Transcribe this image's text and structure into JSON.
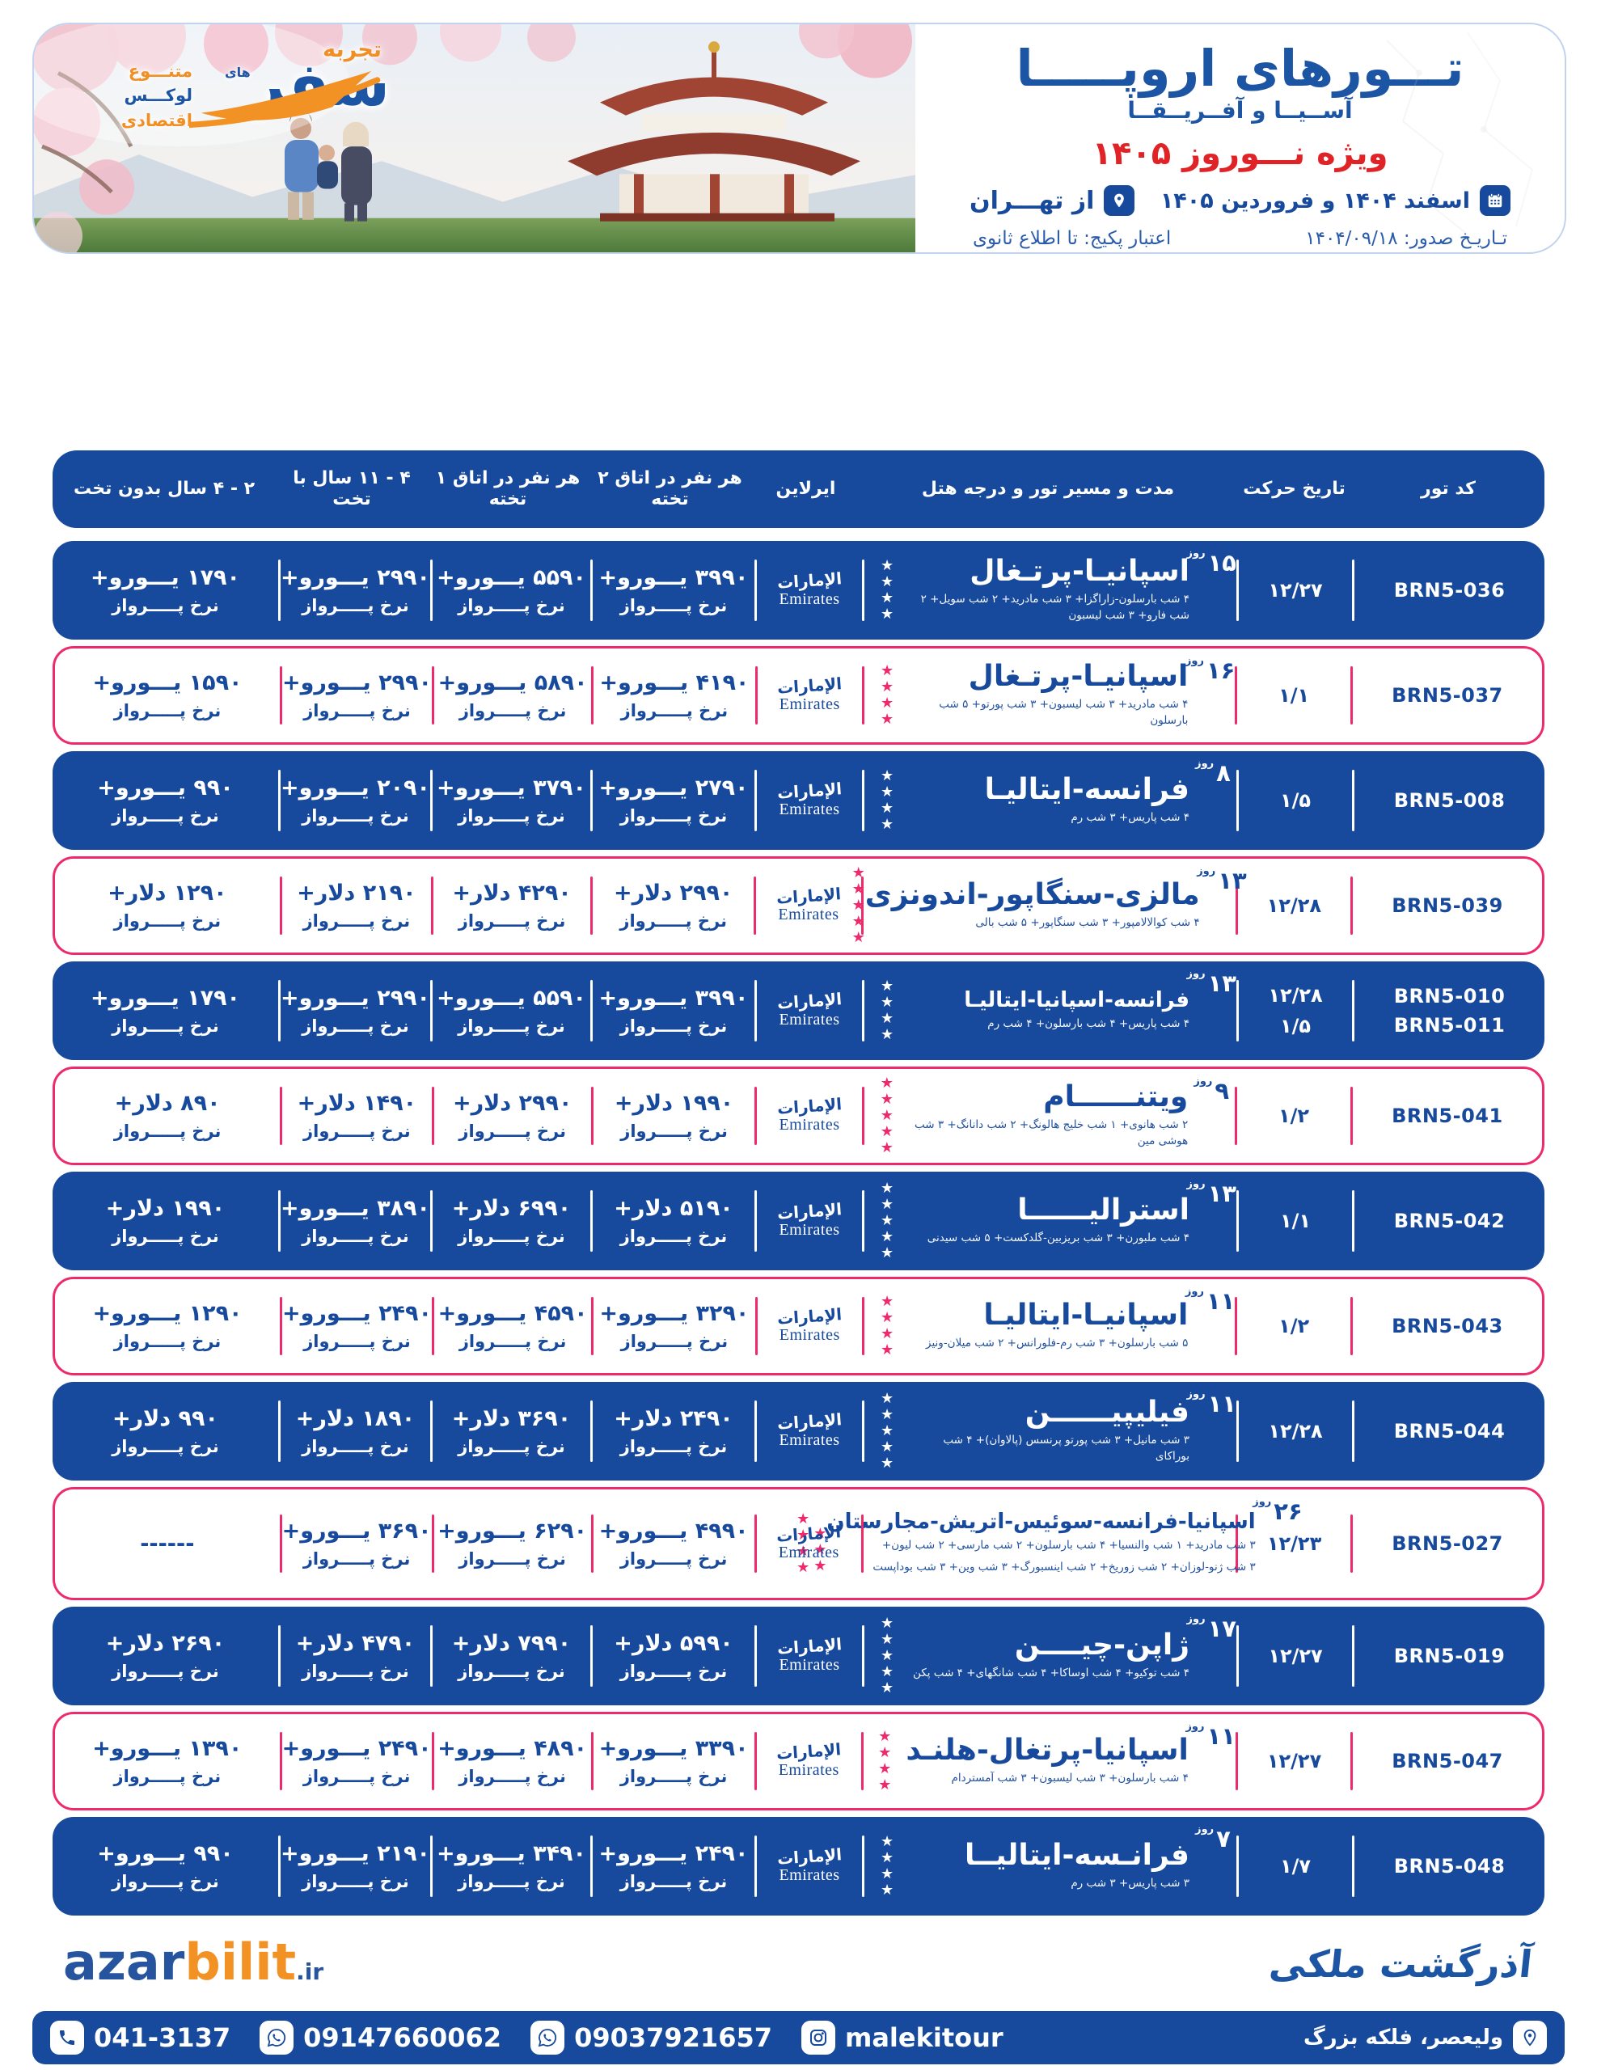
{
  "brand": {
    "tag_top": "تجربه",
    "word": "سفر",
    "word_suffix": "های",
    "tags": [
      "متنـــوع",
      "لوکـــس",
      "اقتصادی"
    ]
  },
  "header": {
    "title": "تـــورهای اروپـــــا",
    "subtitle": "آســیــا و آفــریــقــا",
    "highlight": "ویژه نـــوروز ۱۴۰۵",
    "date_range": "اسفند ۱۴۰۴ و فروردین ۱۴۰۵",
    "origin": "از تهـــران",
    "issue_date": "تـاریـخ صدور: ۱۴۰۴/۰۹/۱۸",
    "validity": "اعتبار پکیج: تا اطلاع ثانوی"
  },
  "table": {
    "columns": [
      "کد تور",
      "تاریخ حرکت",
      "مدت و مسیر تور و درجه هتل",
      "ایرلاین",
      "هر نفر در اتاق ۲ تخته",
      "هر نفر در اتاق ۱ تخته",
      "۴ - ۱۱ سال با تخت",
      "۲ - ۴ سال بدون تخت"
    ],
    "day_word": "روز",
    "fare_note": "نرخ پـــــرواز",
    "airline": {
      "latin": "Emirates",
      "arabic": "الإمارات"
    },
    "rows": [
      {
        "theme": "blue",
        "codes": [
          "BRN5-036"
        ],
        "dates": [
          "۱۲/۲۷"
        ],
        "days": "۱۵",
        "title": "اسپانیـا-پرتـغال",
        "details": [
          "۴ شب بارسلون-زاراگزا+ ۳ شب مادرید+ ۲ شب سویل+ ۲ شب فارو+ ۳ شب لیسبون"
        ],
        "stars": [
          4
        ],
        "prices": [
          "۳۹۹۰ یـــورو+",
          "۵۵۹۰ یـــورو+",
          "۲۹۹۰ یـــورو+",
          "۱۷۹۰ یـــورو+"
        ]
      },
      {
        "theme": "white",
        "codes": [
          "BRN5-037"
        ],
        "dates": [
          "۱/۱"
        ],
        "days": "۱۶",
        "title": "اسپانیـا-پرتـغال",
        "details": [
          "۴ شب مادرید+ ۳ شب لیسبون+ ۳ شب پورتو+ ۵ شب بارسلون"
        ],
        "stars": [
          4
        ],
        "prices": [
          "۴۱۹۰ یـــورو+",
          "۵۸۹۰ یـــورو+",
          "۲۹۹۰ یـــورو+",
          "۱۵۹۰ یـــورو+"
        ]
      },
      {
        "theme": "blue",
        "codes": [
          "BRN5-008"
        ],
        "dates": [
          "۱/۵"
        ],
        "days": "۸",
        "title": "فرانسه-ایتالیـا",
        "details": [
          "۴ شب پاریس+ ۳ شب رم"
        ],
        "stars": [
          4
        ],
        "prices": [
          "۲۷۹۰ یـــورو+",
          "۳۷۹۰ یـــورو+",
          "۲۰۹۰ یـــورو+",
          "۹۹۰ یـــورو+"
        ]
      },
      {
        "theme": "white",
        "codes": [
          "BRN5-039"
        ],
        "dates": [
          "۱۲/۲۸"
        ],
        "days": "۱۳",
        "title": "مالزی-سنگاپور-اندونزی",
        "details": [
          "۴ شب کوالالامپور+ ۳ شب سنگاپور+ ۵ شب بالی"
        ],
        "stars": [
          5
        ],
        "prices": [
          "۲۹۹۰ دلار+",
          "۴۲۹۰ دلار+",
          "۲۱۹۰ دلار+",
          "۱۲۹۰ دلار+"
        ]
      },
      {
        "theme": "blue",
        "codes": [
          "BRN5-010",
          "BRN5-011"
        ],
        "dates": [
          "۱۲/۲۸",
          "۱/۵"
        ],
        "days": "۱۳",
        "title": "فرانسه-اسپانیا-ایتالیـا",
        "details": [
          "۴ شب پاریس+ ۴ شب بارسلون+ ۴ شب رم"
        ],
        "stars": [
          4
        ],
        "prices": [
          "۳۹۹۰ یـــورو+",
          "۵۵۹۰ یـــورو+",
          "۲۹۹۰ یـــورو+",
          "۱۷۹۰ یـــورو+"
        ]
      },
      {
        "theme": "white",
        "codes": [
          "BRN5-041"
        ],
        "dates": [
          "۱/۲"
        ],
        "days": "۹",
        "title": "ویتنــــــام",
        "details": [
          "۲ شب هانوی+ ۱ شب خلیج هالونگ+ ۲ شب دانانگ+ ۳ شب هوشی مین"
        ],
        "stars": [
          5
        ],
        "prices": [
          "۱۹۹۰ دلار+",
          "۲۹۹۰ دلار+",
          "۱۴۹۰ دلار+",
          "۸۹۰ دلار+"
        ]
      },
      {
        "theme": "blue",
        "codes": [
          "BRN5-042"
        ],
        "dates": [
          "۱/۱"
        ],
        "days": "۱۳",
        "title": "استرالیــــــا",
        "details": [
          "۴ شب ملبورن+ ۳ شب بریزبین-گلدکست+ ۵ شب سیدنی"
        ],
        "stars": [
          5
        ],
        "prices": [
          "۵۱۹۰ دلار+",
          "۶۹۹۰ دلار+",
          "۳۸۹۰ یـــورو+",
          "۱۹۹۰ دلار+"
        ]
      },
      {
        "theme": "white",
        "codes": [
          "BRN5-043"
        ],
        "dates": [
          "۱/۲"
        ],
        "days": "۱۱",
        "title": "اسپانیـا-ایتالیـا",
        "details": [
          "۵ شب بارسلون+ ۳ شب رم-فلورانس+ ۲ شب میلان-ونیز"
        ],
        "stars": [
          4
        ],
        "prices": [
          "۳۲۹۰ یـــورو+",
          "۴۵۹۰ یـــورو+",
          "۲۴۹۰ یـــورو+",
          "۱۲۹۰ یـــورو+"
        ]
      },
      {
        "theme": "blue",
        "codes": [
          "BRN5-044"
        ],
        "dates": [
          "۱۲/۲۸"
        ],
        "days": "۱۱",
        "title": "فیلیپیــــــن",
        "details": [
          "۳ شب مانیل+ ۳ شب پورتو پرنسس (پالاوان)+ ۴ شب بوراکای"
        ],
        "stars": [
          5
        ],
        "prices": [
          "۲۴۹۰ دلار+",
          "۳۶۹۰ دلار+",
          "۱۸۹۰ دلار+",
          "۹۹۰ دلار+"
        ]
      },
      {
        "theme": "white",
        "codes": [
          "BRN5-027"
        ],
        "dates": [
          "۱۲/۲۳"
        ],
        "days": "۲۶",
        "title": "اسپانیا-فرانسه-سوئیس-اتریش-مجارستان",
        "details": [
          "۳ شب مادرید+ ۱ شب والنسیا+ ۴ شب بارسلون+ ۲ شب مارسی+ ۲ شب لیون+",
          "۳ شب ژنو-لوزان+ ۲ شب زوریخ+ ۲ شب اینسبورگ+ ۳ شب وین+ ۳ شب بوداپست"
        ],
        "stars": [
          3,
          4
        ],
        "prices": [
          "۴۹۹۰ یـــورو+",
          "۶۲۹۰ یـــورو+",
          "۳۶۹۰ یـــورو+",
          "------"
        ]
      },
      {
        "theme": "blue",
        "codes": [
          "BRN5-019"
        ],
        "dates": [
          "۱۲/۲۷"
        ],
        "days": "۱۷",
        "title": "ژاپن-چیــــن",
        "details": [
          "۴ شب توکیو+ ۴ شب اوساکا+ ۴ شب شانگهای+ ۴ شب پکن"
        ],
        "stars": [
          5
        ],
        "prices": [
          "۵۹۹۰ دلار+",
          "۷۹۹۰ دلار+",
          "۴۷۹۰ دلار+",
          "۲۶۹۰ دلار+"
        ]
      },
      {
        "theme": "white",
        "codes": [
          "BRN5-047"
        ],
        "dates": [
          "۱۲/۲۷"
        ],
        "days": "۱۱",
        "title": "اسپانیا-پرتغال-هلنـد",
        "details": [
          "۴ شب بارسلون+ ۳ شب لیسبون+ ۳ شب آمستردام"
        ],
        "stars": [
          4
        ],
        "prices": [
          "۳۳۹۰ یـــورو+",
          "۴۸۹۰ یـــورو+",
          "۲۴۹۰ یـــورو+",
          "۱۳۹۰ یـــورو+"
        ]
      },
      {
        "theme": "blue",
        "codes": [
          "BRN5-048"
        ],
        "dates": [
          "۱/۷"
        ],
        "days": "۷",
        "title": "فرانـسه-ایتالیــا",
        "details": [
          "۳ شب پاریس+ ۳ شب رم"
        ],
        "stars": [
          4
        ],
        "prices": [
          "۲۴۹۰ یـــورو+",
          "۳۴۹۰ یـــورو+",
          "۲۱۹۰ یـــورو+",
          "۹۹۰ یـــورو+"
        ]
      }
    ]
  },
  "footer": {
    "company": "آذرگشت ملکی",
    "site_azar": "azar",
    "site_bilit": "bilit",
    "site_tld": ".ir",
    "phone": "041-3137",
    "whatsapp1": "09147660062",
    "whatsapp2": "09037921657",
    "instagram": "malekitour",
    "address": "ولیعصر، فلکه بزرگ"
  }
}
